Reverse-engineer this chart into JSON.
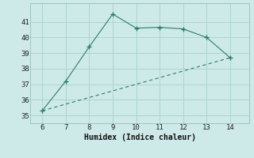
{
  "xlabel": "Humidex (Indice chaleur)",
  "line1_x": [
    6,
    7,
    8,
    9,
    10,
    11,
    12,
    13,
    14
  ],
  "line1_y": [
    35.3,
    37.2,
    39.4,
    41.5,
    40.6,
    40.65,
    40.55,
    40.0,
    38.7
  ],
  "line2_x": [
    6,
    14
  ],
  "line2_y": [
    35.3,
    38.7
  ],
  "line_color": "#2a7d6e",
  "bg_color": "#ceeae8",
  "grid_color": "#aad4d0",
  "xlim": [
    5.5,
    14.8
  ],
  "ylim": [
    34.5,
    42.2
  ],
  "xticks": [
    6,
    7,
    8,
    9,
    10,
    11,
    12,
    13,
    14
  ],
  "yticks": [
    35,
    36,
    37,
    38,
    39,
    40,
    41
  ],
  "marker": "+"
}
